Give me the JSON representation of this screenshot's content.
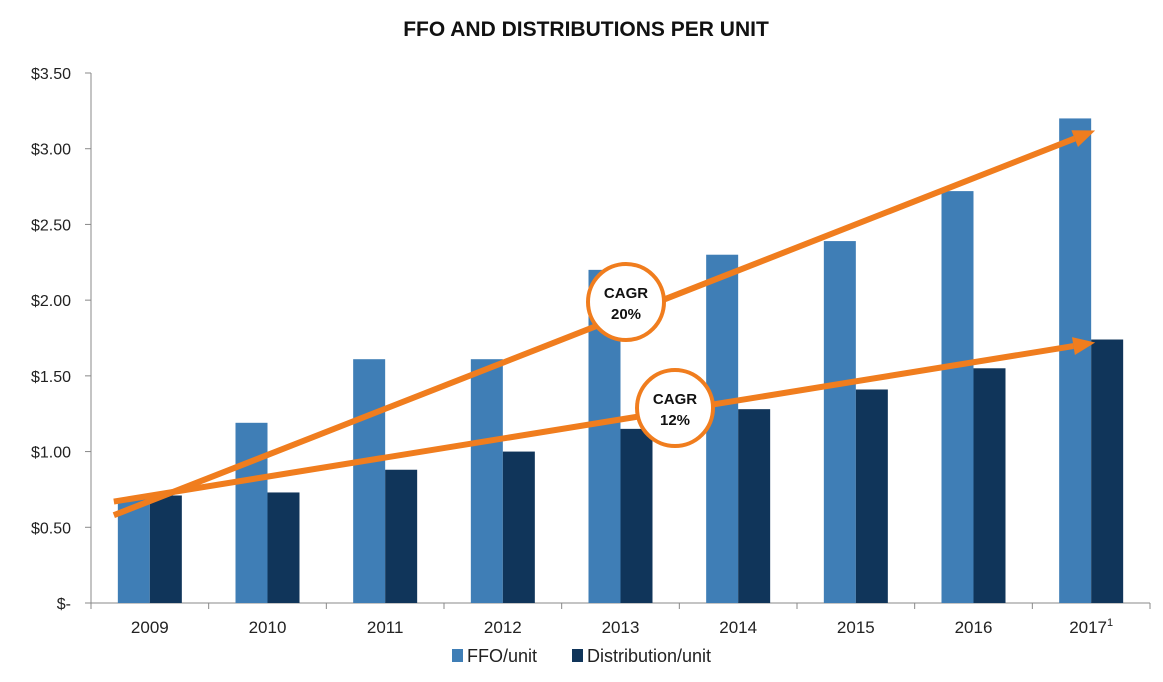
{
  "chart_data": {
    "type": "bar",
    "title": "FFO AND DISTRIBUTIONS PER UNIT",
    "xlabel": "",
    "ylabel": "",
    "ylim": [
      0,
      3.5
    ],
    "yticks": [
      0,
      0.5,
      1.0,
      1.5,
      2.0,
      2.5,
      3.0,
      3.5
    ],
    "ytick_labels": [
      "$-",
      "$0.50",
      "$1.00",
      "$1.50",
      "$2.00",
      "$2.50",
      "$3.00",
      "$3.50"
    ],
    "categories": [
      "2009",
      "2010",
      "2011",
      "2012",
      "2013",
      "2014",
      "2015",
      "2016",
      "2017"
    ],
    "category_footnote": {
      "index": 8,
      "mark": "1"
    },
    "series": [
      {
        "name": "FFO/unit",
        "color": "#3F7EB6",
        "values": [
          0.69,
          1.19,
          1.61,
          1.61,
          2.2,
          2.3,
          2.39,
          2.72,
          3.2
        ]
      },
      {
        "name": "Distribution/unit",
        "color": "#10355A",
        "values": [
          0.71,
          0.73,
          0.88,
          1.0,
          1.15,
          1.28,
          1.41,
          1.55,
          1.74
        ]
      }
    ],
    "grid": false,
    "legend_position": "bottom",
    "annotations": [
      {
        "label": "CAGR",
        "value": "20%",
        "color": "#F07D1E",
        "arrow": {
          "from": {
            "x": "2009",
            "y": 0.58
          },
          "to": {
            "x": "2017",
            "y": 3.12
          }
        }
      },
      {
        "label": "CAGR",
        "value": "12%",
        "color": "#F07D1E",
        "arrow": {
          "from": {
            "x": "2009",
            "y": 0.67
          },
          "to": {
            "x": "2017",
            "y": 1.72
          }
        }
      }
    ]
  }
}
